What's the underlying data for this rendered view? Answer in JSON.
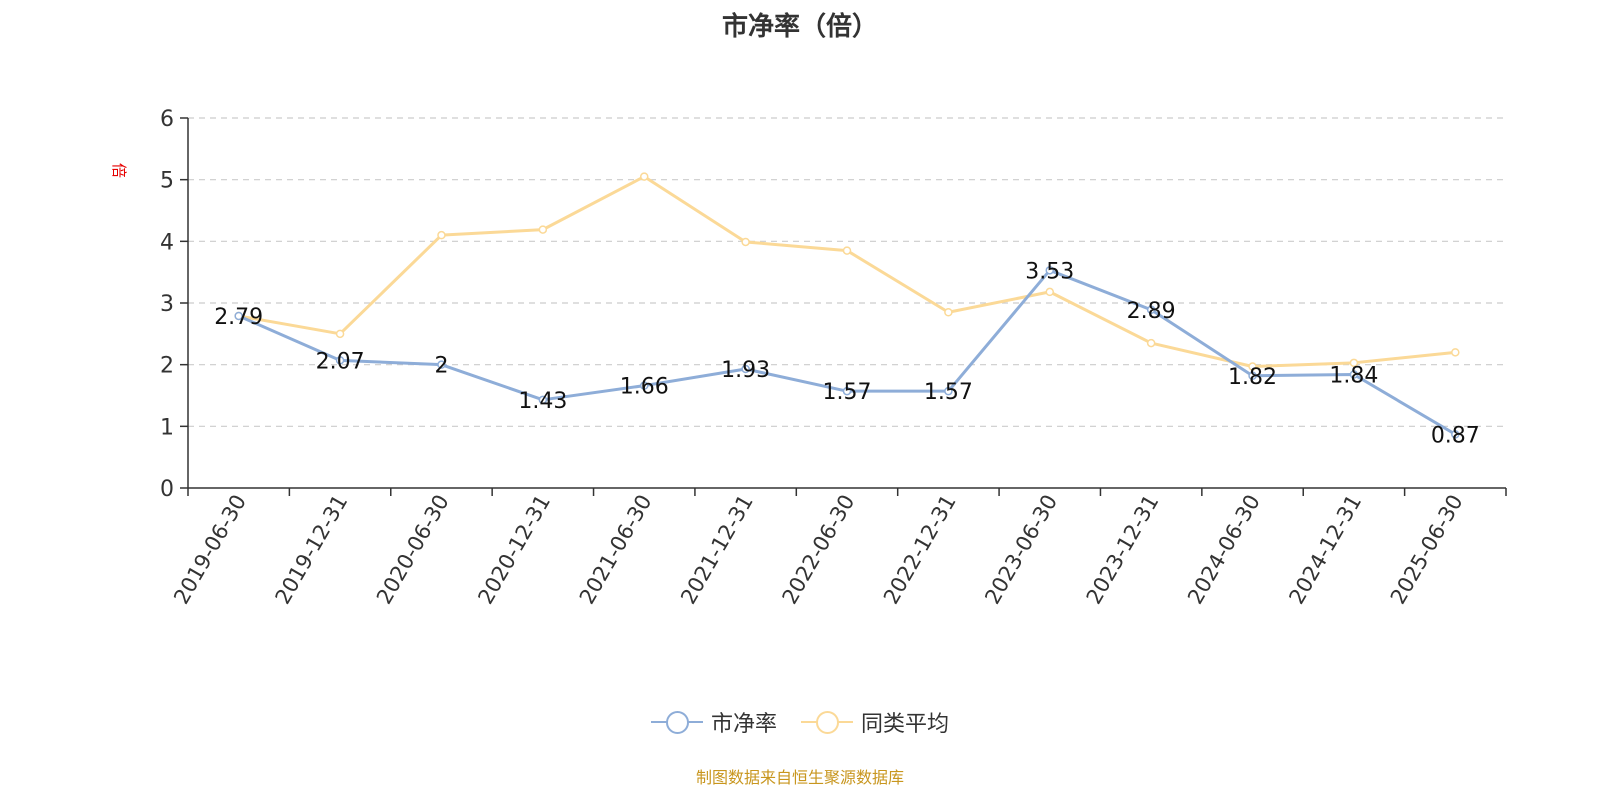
{
  "title": "市净率（倍）",
  "y_unit": "倍",
  "source_note": "制图数据来自恒生聚源数据库",
  "colors": {
    "series_main": "#8eadd8",
    "series_avg": "#fbd997",
    "axis": "#333333",
    "grid": "#cccccc",
    "unit": "#e60000",
    "note": "#c8961e"
  },
  "legend": [
    {
      "label": "市净率",
      "color": "#8eadd8"
    },
    {
      "label": "同类平均",
      "color": "#fbd997"
    }
  ],
  "chart_data": {
    "type": "line",
    "title": "市净率（倍）",
    "ylabel": "倍",
    "xlabel": "",
    "ylim": [
      0,
      6
    ],
    "yticks": [
      0,
      1,
      2,
      3,
      4,
      5,
      6
    ],
    "grid": true,
    "legend_position": "bottom",
    "categories": [
      "2019-06-30",
      "2019-12-31",
      "2020-06-30",
      "2020-12-31",
      "2021-06-30",
      "2021-12-31",
      "2022-06-30",
      "2022-12-31",
      "2023-06-30",
      "2023-12-31",
      "2024-06-30",
      "2024-12-31",
      "2025-06-30"
    ],
    "series": [
      {
        "name": "市净率",
        "color": "#8eadd8",
        "show_labels": true,
        "values": [
          2.79,
          2.07,
          2,
          1.43,
          1.66,
          1.93,
          1.57,
          1.57,
          3.53,
          2.89,
          1.82,
          1.84,
          0.87
        ],
        "labels": [
          "2.79",
          "2.07",
          "2",
          "1.43",
          "1.66",
          "1.93",
          "1.57",
          "1.57",
          "3.53",
          "2.89",
          "1.82",
          "1.84",
          "0.87"
        ]
      },
      {
        "name": "同类平均",
        "color": "#fbd997",
        "show_labels": false,
        "values": [
          2.79,
          2.5,
          4.1,
          4.19,
          5.05,
          3.99,
          3.85,
          2.85,
          3.18,
          2.35,
          1.97,
          2.03,
          2.2
        ]
      }
    ]
  }
}
